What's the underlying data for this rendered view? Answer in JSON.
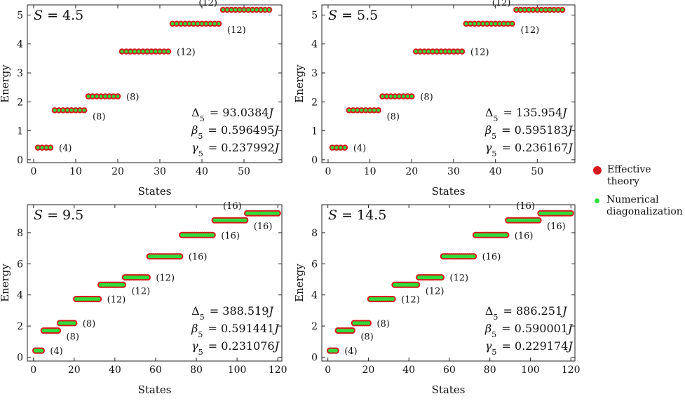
{
  "colors": {
    "effective": "#d7191c",
    "numerical": "#2dde3c",
    "frame": "#222222"
  },
  "legend": [
    {
      "label": "Effective theory",
      "color_key": "effective"
    },
    {
      "label": "Numerical diagonalization",
      "color_key": "numerical"
    }
  ],
  "chart_data": [
    {
      "type": "scatter",
      "title": "S = 4.5",
      "spin": "4.5",
      "xlabel": "States",
      "ylabel": "Energy",
      "xlim": [
        -1.5,
        59
      ],
      "ylim": [
        -0.1,
        5.35
      ],
      "xticks": [
        0,
        10,
        20,
        30,
        40,
        50
      ],
      "yticks": [
        0,
        1,
        2,
        3,
        4,
        5
      ],
      "levels": [
        {
          "start": 1,
          "count": 4,
          "energy": 0.42,
          "label": "(4)",
          "label_pos": "right"
        },
        {
          "start": 5,
          "count": 8,
          "energy": 1.71,
          "label": "(8)",
          "label_pos": "below-right"
        },
        {
          "start": 13,
          "count": 8,
          "energy": 2.19,
          "label": "(8)",
          "label_pos": "right"
        },
        {
          "start": 21,
          "count": 12,
          "energy": 3.74,
          "label": "(12)",
          "label_pos": "right"
        },
        {
          "start": 33,
          "count": 12,
          "energy": 4.7,
          "label": "(12)",
          "label_pos": "below-right"
        },
        {
          "start": 45,
          "count": 12,
          "energy": 5.18,
          "label": "(12)",
          "label_pos": "above-left"
        }
      ],
      "annotations": [
        {
          "symbol": "Δ",
          "sub": "5",
          "value": "93.0384"
        },
        {
          "symbol": "β",
          "sub": "5",
          "value": "0.596495"
        },
        {
          "symbol": "γ",
          "sub": "5",
          "value": "0.237992"
        }
      ],
      "unit": "J"
    },
    {
      "type": "scatter",
      "title": "S = 5.5",
      "spin": "5.5",
      "xlabel": "States",
      "ylabel": "Energy",
      "xlim": [
        -1.5,
        59
      ],
      "ylim": [
        -0.1,
        5.35
      ],
      "xticks": [
        0,
        10,
        20,
        30,
        40,
        50
      ],
      "yticks": [
        0,
        1,
        2,
        3,
        4,
        5
      ],
      "levels": [
        {
          "start": 1,
          "count": 4,
          "energy": 0.42,
          "label": "(4)",
          "label_pos": "right"
        },
        {
          "start": 5,
          "count": 8,
          "energy": 1.71,
          "label": "(8)",
          "label_pos": "below-right"
        },
        {
          "start": 13,
          "count": 8,
          "energy": 2.19,
          "label": "(8)",
          "label_pos": "right"
        },
        {
          "start": 21,
          "count": 12,
          "energy": 3.74,
          "label": "(12)",
          "label_pos": "right"
        },
        {
          "start": 33,
          "count": 12,
          "energy": 4.7,
          "label": "(12)",
          "label_pos": "below-right"
        },
        {
          "start": 45,
          "count": 12,
          "energy": 5.18,
          "label": "(12)",
          "label_pos": "above-left"
        }
      ],
      "annotations": [
        {
          "symbol": "Δ",
          "sub": "5",
          "value": "135.954"
        },
        {
          "symbol": "β",
          "sub": "5",
          "value": "0.595183"
        },
        {
          "symbol": "γ",
          "sub": "5",
          "value": "0.236167"
        }
      ],
      "unit": "J"
    },
    {
      "type": "scatter",
      "title": "S = 9.5",
      "spin": "9.5",
      "xlabel": "States",
      "ylabel": "Energy",
      "xlim": [
        -3,
        122
      ],
      "ylim": [
        -0.25,
        9.8
      ],
      "xticks": [
        0,
        20,
        40,
        60,
        80,
        100,
        120
      ],
      "yticks": [
        0,
        2,
        4,
        6,
        8
      ],
      "levels": [
        {
          "start": 1,
          "count": 4,
          "energy": 0.42,
          "label": "(4)",
          "label_pos": "right"
        },
        {
          "start": 5,
          "count": 8,
          "energy": 1.71,
          "label": "(8)",
          "label_pos": "below-right"
        },
        {
          "start": 13,
          "count": 8,
          "energy": 2.19,
          "label": "(8)",
          "label_pos": "right"
        },
        {
          "start": 21,
          "count": 12,
          "energy": 3.74,
          "label": "(12)",
          "label_pos": "right"
        },
        {
          "start": 33,
          "count": 12,
          "energy": 4.65,
          "label": "(12)",
          "label_pos": "below-right"
        },
        {
          "start": 45,
          "count": 12,
          "energy": 5.13,
          "label": "(12)",
          "label_pos": "right"
        },
        {
          "start": 57,
          "count": 16,
          "energy": 6.48,
          "label": "(16)",
          "label_pos": "right"
        },
        {
          "start": 73,
          "count": 16,
          "energy": 7.85,
          "label": "(16)",
          "label_pos": "right"
        },
        {
          "start": 89,
          "count": 16,
          "energy": 8.8,
          "label": "(16)",
          "label_pos": "below-right"
        },
        {
          "start": 105,
          "count": 16,
          "energy": 9.25,
          "label": "(16)",
          "label_pos": "above-left"
        }
      ],
      "annotations": [
        {
          "symbol": "Δ",
          "sub": "5",
          "value": "388.519"
        },
        {
          "symbol": "β",
          "sub": "5",
          "value": "0.591441"
        },
        {
          "symbol": "γ",
          "sub": "5",
          "value": "0.231076"
        }
      ],
      "unit": "J"
    },
    {
      "type": "scatter",
      "title": "S = 14.5",
      "spin": "14.5",
      "xlabel": "States",
      "ylabel": "Energy",
      "xlim": [
        -3,
        122
      ],
      "ylim": [
        -0.25,
        9.8
      ],
      "xticks": [
        0,
        20,
        40,
        60,
        80,
        100,
        120
      ],
      "yticks": [
        0,
        2,
        4,
        6,
        8
      ],
      "levels": [
        {
          "start": 1,
          "count": 4,
          "energy": 0.42,
          "label": "(4)",
          "label_pos": "right"
        },
        {
          "start": 5,
          "count": 8,
          "energy": 1.71,
          "label": "(8)",
          "label_pos": "below-right"
        },
        {
          "start": 13,
          "count": 8,
          "energy": 2.19,
          "label": "(8)",
          "label_pos": "right"
        },
        {
          "start": 21,
          "count": 12,
          "energy": 3.74,
          "label": "(12)",
          "label_pos": "right"
        },
        {
          "start": 33,
          "count": 12,
          "energy": 4.65,
          "label": "(12)",
          "label_pos": "below-right"
        },
        {
          "start": 45,
          "count": 12,
          "energy": 5.13,
          "label": "(12)",
          "label_pos": "right"
        },
        {
          "start": 57,
          "count": 16,
          "energy": 6.48,
          "label": "(16)",
          "label_pos": "right"
        },
        {
          "start": 73,
          "count": 16,
          "energy": 7.85,
          "label": "(16)",
          "label_pos": "right"
        },
        {
          "start": 89,
          "count": 16,
          "energy": 8.8,
          "label": "(16)",
          "label_pos": "below-right"
        },
        {
          "start": 105,
          "count": 16,
          "energy": 9.25,
          "label": "(16)",
          "label_pos": "above-left"
        }
      ],
      "annotations": [
        {
          "symbol": "Δ",
          "sub": "5",
          "value": "886.251"
        },
        {
          "symbol": "β",
          "sub": "5",
          "value": "0.590001"
        },
        {
          "symbol": "γ",
          "sub": "5",
          "value": "0.229174"
        }
      ],
      "unit": "J"
    }
  ]
}
